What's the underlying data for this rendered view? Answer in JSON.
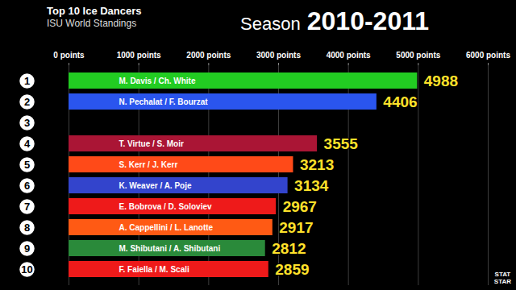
{
  "chart_data": {
    "type": "bar",
    "orientation": "horizontal",
    "title": "Top 10 Ice Dancers",
    "subtitle": "ISU World Standings",
    "season_label": "Season",
    "season": "2010-2011",
    "credit": "STAT STAR",
    "categories": [
      1,
      2,
      3,
      4,
      5,
      6,
      7,
      8,
      9,
      10
    ],
    "labels": [
      "M. Davis / Ch. White",
      "N. Pechalat / F. Bourzat",
      null,
      "T. Virtue / S. Moir",
      "S. Kerr / J. Kerr",
      "K. Weaver / A. Poje",
      "E. Bobrova / D. Soloviev",
      "A. Cappellini / L. Lanotte",
      "M. Shibutani / A. Shibutani",
      "F. Faiella / M. Scali"
    ],
    "values": [
      4988,
      4406,
      null,
      3555,
      3213,
      3134,
      2967,
      2917,
      2812,
      2859
    ],
    "colors": [
      "#22cc22",
      "#2a55ee",
      null,
      "#aa1535",
      "#ff4a18",
      "#3344cc",
      "#ee1a1a",
      "#ff5a14",
      "#2a8a3a",
      "#ee1a1a"
    ],
    "data_labels": true,
    "xlim": [
      0,
      6000
    ],
    "xticks": [
      {
        "value": 0,
        "label": "0 points"
      },
      {
        "value": 1000,
        "label": "1000 points"
      },
      {
        "value": 2000,
        "label": "2000 points"
      },
      {
        "value": 3000,
        "label": "3000 points"
      },
      {
        "value": 4000,
        "label": "4000 points"
      },
      {
        "value": 5000,
        "label": "5000 points"
      },
      {
        "value": 6000,
        "label": "6000 points"
      }
    ],
    "grid": true
  }
}
